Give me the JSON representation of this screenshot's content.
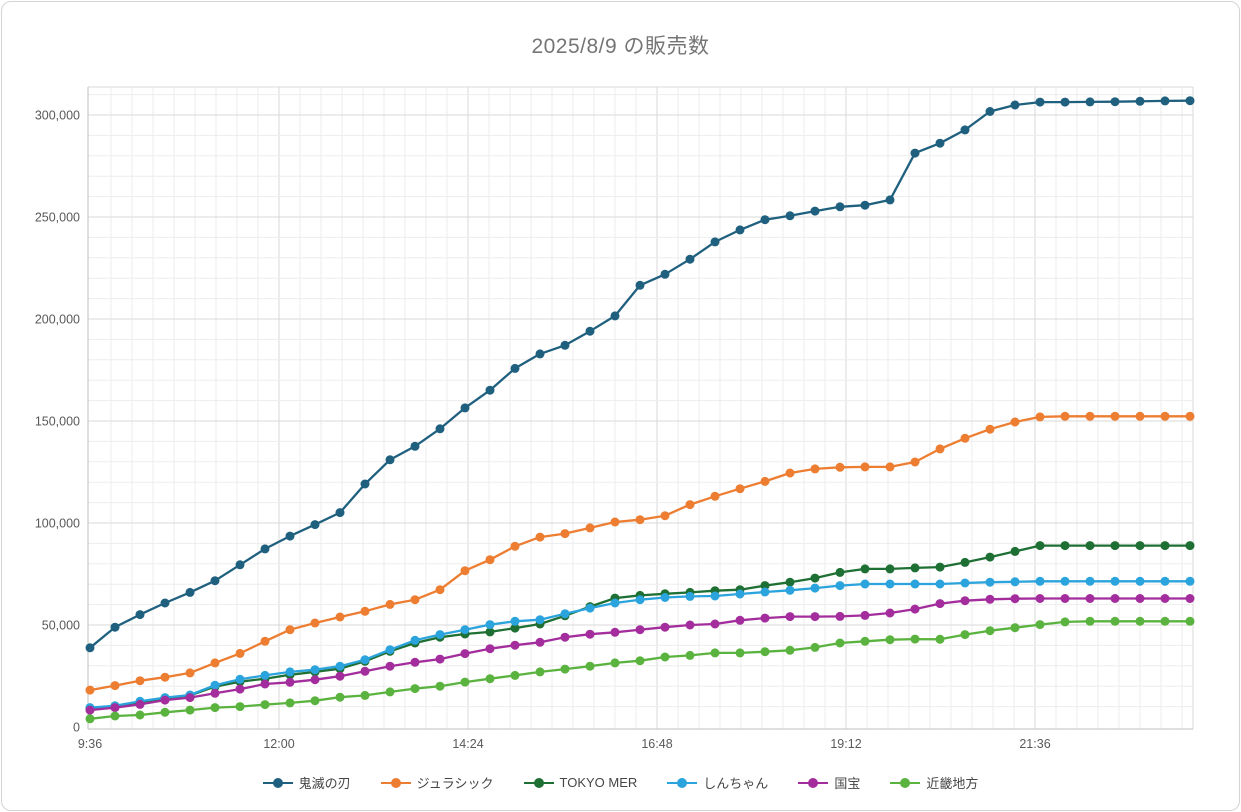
{
  "title": "2025/8/9 の販売数",
  "chart_data": {
    "type": "line",
    "title": "2025/8/9 の販売数",
    "xlabel": "",
    "ylabel": "",
    "ylim": [
      0,
      310000
    ],
    "y_major_ticks": [
      0,
      50000,
      100000,
      150000,
      200000,
      250000,
      300000
    ],
    "y_minor_step": 10000,
    "x_tick_labels": [
      "9:36",
      "12:00",
      "14:24",
      "16:48",
      "19:12",
      "21:36"
    ],
    "grid": "on",
    "legend_position": "bottom",
    "x": [
      "9:36",
      "9:55",
      "10:14",
      "10:33",
      "10:52",
      "11:11",
      "11:30",
      "11:49",
      "12:08",
      "12:27",
      "12:46",
      "13:05",
      "13:24",
      "13:43",
      "14:02",
      "14:21",
      "14:40",
      "14:59",
      "15:18",
      "15:37",
      "15:56",
      "16:15",
      "16:34",
      "16:53",
      "17:12",
      "17:31",
      "17:50",
      "18:09",
      "18:28",
      "18:47",
      "19:06",
      "19:25",
      "19:44",
      "20:03",
      "20:22",
      "20:41",
      "21:00",
      "21:19",
      "21:38",
      "21:57",
      "22:16",
      "22:35",
      "22:54",
      "23:13",
      "23:32"
    ],
    "series": [
      {
        "name": "鬼滅の刃",
        "color": "#20607f",
        "values": [
          38800,
          48900,
          55100,
          60800,
          66000,
          71700,
          79500,
          87300,
          93600,
          99200,
          105100,
          119100,
          131000,
          137600,
          146200,
          156400,
          165100,
          175800,
          182900,
          187100,
          194000,
          201500,
          216500,
          221900,
          229300,
          237800,
          243700,
          248700,
          250600,
          252900,
          255000,
          255800,
          258400,
          281300,
          286200,
          292700,
          301700,
          304900,
          306300,
          306300,
          306400,
          306500,
          306700,
          306900,
          307000
        ]
      },
      {
        "name": "ジュラシック",
        "color": "#ed7d31",
        "values": [
          18100,
          20300,
          22700,
          24400,
          26500,
          31400,
          36100,
          42000,
          47700,
          51000,
          53900,
          56700,
          60100,
          62400,
          67300,
          76600,
          82000,
          88600,
          93100,
          94800,
          97600,
          100500,
          101600,
          103600,
          109000,
          113100,
          116800,
          120400,
          124500,
          126500,
          127300,
          127500,
          127500,
          129900,
          136300,
          141500,
          146000,
          149500,
          152000,
          152300,
          152300,
          152300,
          152300,
          152300,
          152300
        ]
      },
      {
        "name": "TOKYO MER",
        "color": "#1e6f33",
        "values": [
          9000,
          10300,
          12200,
          14100,
          15500,
          19800,
          22200,
          23700,
          25600,
          27000,
          28600,
          32200,
          37100,
          41200,
          44000,
          45600,
          46600,
          48500,
          50500,
          54500,
          59000,
          63200,
          64500,
          65300,
          66000,
          66800,
          67300,
          69300,
          71000,
          73000,
          75800,
          77500,
          77500,
          78000,
          78400,
          80700,
          83300,
          86100,
          88900,
          88900,
          88900,
          88900,
          88900,
          88900,
          88900
        ]
      },
      {
        "name": "しんちゃん",
        "color": "#2ba3dc",
        "values": [
          9500,
          10400,
          12600,
          14400,
          15700,
          20500,
          23400,
          25300,
          27000,
          28100,
          29800,
          33000,
          37900,
          42500,
          45300,
          47700,
          50200,
          51800,
          52600,
          55500,
          58300,
          60800,
          62400,
          63500,
          64000,
          64200,
          65200,
          66200,
          67000,
          68100,
          69300,
          70100,
          70100,
          70100,
          70100,
          70600,
          71000,
          71200,
          71400,
          71400,
          71400,
          71400,
          71400,
          71400,
          71400
        ]
      },
      {
        "name": "国宝",
        "color": "#a32d9c",
        "values": [
          8300,
          9500,
          11100,
          13200,
          14400,
          16500,
          18600,
          21100,
          21900,
          23200,
          24900,
          27300,
          29800,
          31700,
          33300,
          36000,
          38400,
          40100,
          41500,
          44000,
          45500,
          46400,
          47700,
          48900,
          50000,
          50500,
          52300,
          53400,
          54100,
          54100,
          54200,
          54700,
          55900,
          57800,
          60500,
          61900,
          62600,
          62900,
          63000,
          63000,
          63000,
          63000,
          63000,
          63000,
          63000
        ]
      },
      {
        "name": "近畿地方",
        "color": "#5bb33f",
        "values": [
          4000,
          5400,
          5900,
          7200,
          8300,
          9500,
          10000,
          11000,
          11800,
          12900,
          14600,
          15500,
          17200,
          18800,
          20000,
          22000,
          23700,
          25300,
          27000,
          28400,
          29800,
          31400,
          32500,
          34300,
          35100,
          36300,
          36300,
          36900,
          37600,
          39000,
          41200,
          42000,
          42800,
          43100,
          43000,
          45300,
          47200,
          48700,
          50200,
          51500,
          51800,
          51800,
          51800,
          51800,
          51800
        ]
      }
    ]
  },
  "style": {
    "minor_grid_color": "#ededed",
    "major_grid_color": "#d9d9d9",
    "axis_line_color": "#bfbfbf",
    "tick_label_color": "#595959",
    "title_color": "#757575",
    "legend_text_color": "#454545"
  }
}
